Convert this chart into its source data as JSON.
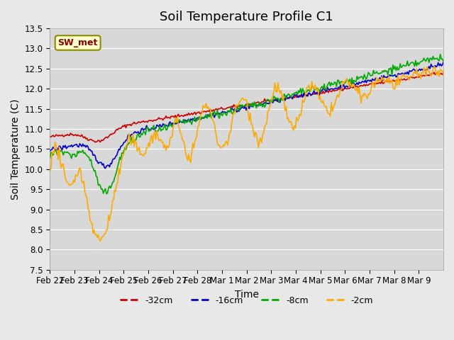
{
  "title": "Soil Temperature Profile C1",
  "xlabel": "Time",
  "ylabel": "Soil Temperature (C)",
  "ylim": [
    7.5,
    13.5
  ],
  "annotation_label": "SW_met",
  "background_color": "#e8e8e8",
  "plot_bg_color": "#d8d8d8",
  "legend_entries": [
    "-32cm",
    "-16cm",
    "-8cm",
    "-2cm"
  ],
  "legend_colors": [
    "#cc0000",
    "#0000cc",
    "#00aa00",
    "#ffaa00"
  ],
  "x_tick_labels": [
    "Feb 22",
    "Feb 23",
    "Feb 24",
    "Feb 25",
    "Feb 26",
    "Feb 27",
    "Feb 28",
    "Mar 1",
    "Mar 2",
    "Mar 3",
    "Mar 4",
    "Mar 5",
    "Mar 6",
    "Mar 7",
    "Mar 8",
    "Mar 9"
  ],
  "title_fontsize": 13,
  "axis_fontsize": 10,
  "tick_fontsize": 8.5
}
